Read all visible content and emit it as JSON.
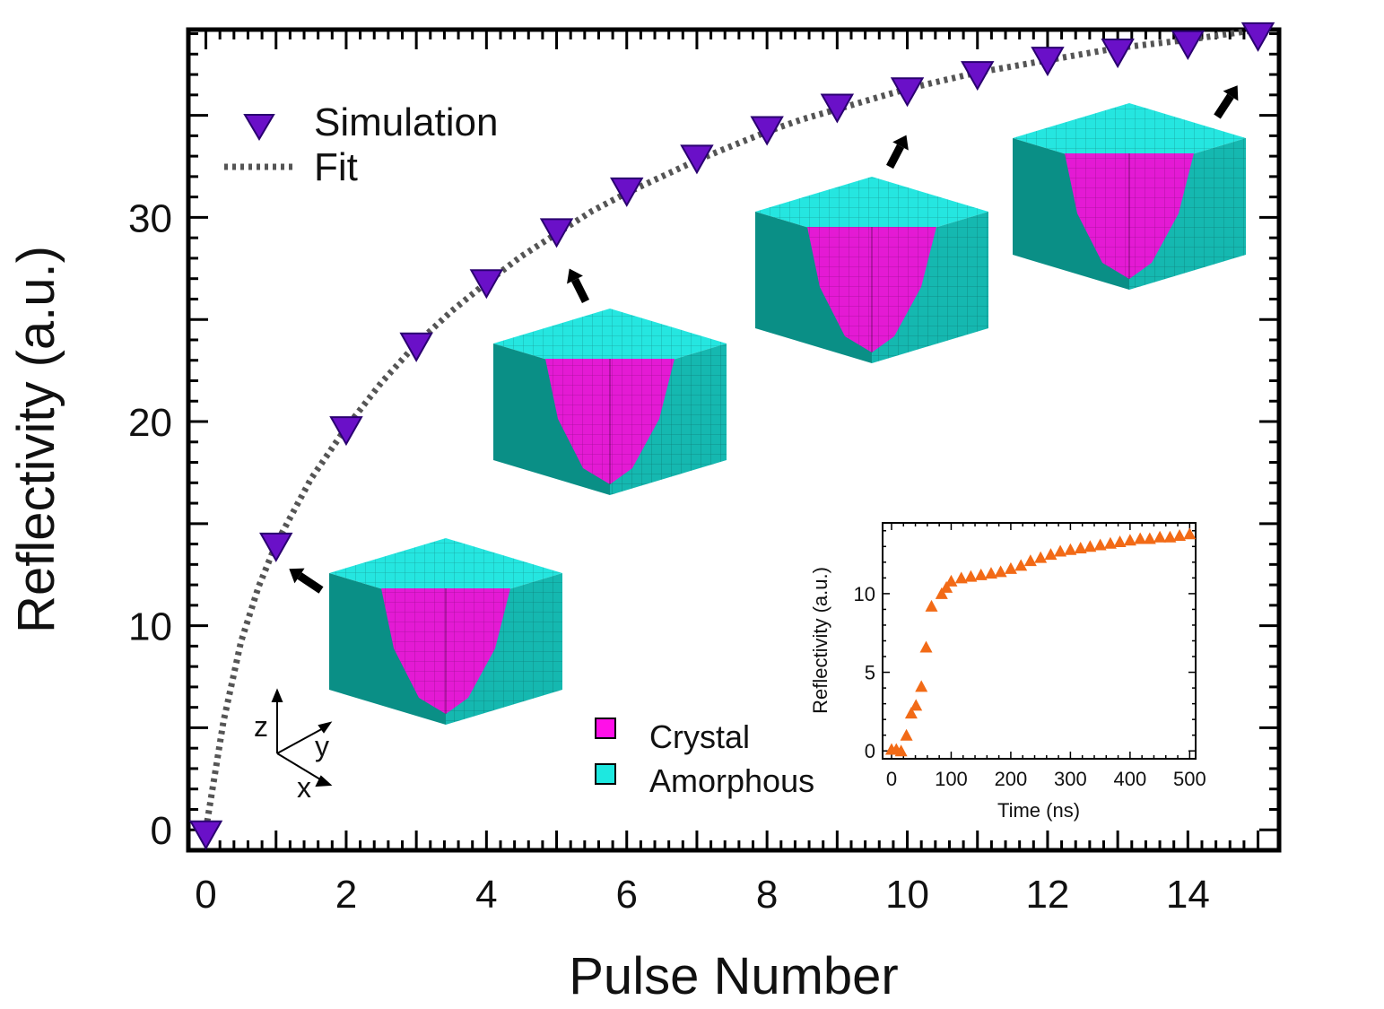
{
  "chart_data": {
    "type": "scatter",
    "xlabel": "Pulse Number",
    "ylabel": "Reflectivity (a.u.)",
    "xlim": [
      -0.25,
      15.3
    ],
    "ylim": [
      -1,
      39.2
    ],
    "x_ticks": [
      0,
      2,
      4,
      6,
      8,
      10,
      12,
      14
    ],
    "y_ticks": [
      0,
      10,
      20,
      30
    ],
    "x_tick_labels": [
      "0",
      "2",
      "4",
      "6",
      "8",
      "10",
      "12",
      "14"
    ],
    "y_tick_labels": [
      "0",
      "10",
      "20",
      "30"
    ],
    "series": [
      {
        "name": "Simulation",
        "marker": "triangle-down",
        "color": "#6a10c8",
        "x": [
          0,
          1,
          2,
          3,
          4,
          5,
          6,
          7,
          8,
          9,
          10,
          11,
          12,
          13,
          14,
          15
        ],
        "y": [
          -0.2,
          13.9,
          19.6,
          23.7,
          26.8,
          29.3,
          31.3,
          32.9,
          34.3,
          35.4,
          36.2,
          37.0,
          37.7,
          38.1,
          38.5,
          38.9
        ]
      },
      {
        "name": "Fit",
        "style": "dotted",
        "color": "#555555",
        "x": [
          0,
          0.25,
          0.5,
          0.75,
          1,
          1.5,
          2,
          2.5,
          3,
          3.5,
          4,
          4.5,
          5,
          5.5,
          6,
          6.5,
          7,
          7.5,
          8,
          8.5,
          9,
          9.5,
          10,
          10.5,
          11,
          11.5,
          12,
          12.5,
          13,
          13.5,
          14,
          14.5,
          15
        ],
        "y": [
          0,
          5.3,
          9.2,
          11.9,
          14.0,
          17.2,
          19.7,
          21.9,
          23.8,
          25.4,
          26.8,
          28.1,
          29.2,
          30.3,
          31.2,
          32.0,
          32.8,
          33.5,
          34.2,
          34.8,
          35.3,
          35.8,
          36.3,
          36.7,
          37.1,
          37.4,
          37.7,
          38.0,
          38.3,
          38.5,
          38.7,
          38.95,
          39.2
        ]
      }
    ],
    "legend": [
      "Simulation",
      "Fit"
    ],
    "phase_legend": [
      {
        "label": "Crystal",
        "color": "#ff10e8"
      },
      {
        "label": "Amorphous",
        "color": "#1de8e0"
      }
    ],
    "annotations": {
      "cube_snapshots_at_pulse": [
        1,
        5,
        10,
        15
      ],
      "axes_triad": [
        "z",
        "y",
        "x"
      ]
    },
    "inset": {
      "type": "scatter",
      "xlabel": "Time (ns)",
      "ylabel": "Reflectivity (a.u.)",
      "xlim": [
        -15,
        510
      ],
      "ylim": [
        -0.5,
        14.5
      ],
      "x_ticks": [
        0,
        100,
        200,
        300,
        400,
        500
      ],
      "y_ticks": [
        0,
        5,
        10
      ],
      "x_tick_labels": [
        "0",
        "100",
        "200",
        "300",
        "400",
        "500"
      ],
      "y_tick_labels": [
        "0",
        "5",
        "10"
      ],
      "series": [
        {
          "name": "Reflectivity",
          "marker": "triangle-up",
          "color": "#f26a16",
          "x": [
            0,
            8,
            16,
            25,
            33,
            41,
            50,
            58,
            67,
            84,
            92,
            100,
            117,
            133,
            150,
            167,
            183,
            200,
            217,
            233,
            250,
            267,
            283,
            300,
            317,
            333,
            350,
            367,
            383,
            400,
            417,
            433,
            450,
            467,
            483,
            500
          ],
          "y": [
            0.1,
            0.1,
            0.0,
            1.0,
            2.4,
            2.9,
            4.1,
            6.6,
            9.2,
            10.0,
            10.4,
            10.8,
            11.0,
            11.1,
            11.2,
            11.3,
            11.4,
            11.6,
            11.8,
            12.1,
            12.3,
            12.5,
            12.7,
            12.8,
            12.9,
            13.0,
            13.1,
            13.2,
            13.3,
            13.4,
            13.5,
            13.5,
            13.6,
            13.6,
            13.7,
            13.8
          ]
        }
      ]
    }
  }
}
